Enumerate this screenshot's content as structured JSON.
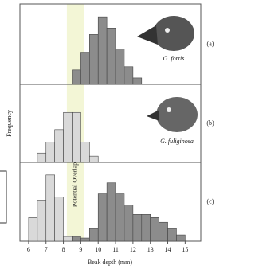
{
  "y_label": "Frequency",
  "x_label": "Beak depth (mm)",
  "chart_data": [
    {
      "type": "histogram",
      "label": "(a)",
      "species": "G. fortis",
      "xlim": [
        5.5,
        15.9
      ],
      "ylim": [
        0,
        100
      ],
      "series": [
        {
          "color": "#8c8c8c",
          "bins": [
            8.5,
            9,
            9.5,
            10,
            10.5,
            11,
            11.5,
            12,
            12.5
          ],
          "values": [
            18,
            40,
            62,
            84,
            70,
            44,
            22,
            8
          ]
        }
      ]
    },
    {
      "type": "histogram",
      "label": "(b)",
      "species": "G. fuliginosa",
      "xlim": [
        5.5,
        15.9
      ],
      "ylim": [
        0,
        100
      ],
      "series": [
        {
          "color": "#d9d9d9",
          "bins": [
            6.5,
            7,
            7.5,
            8,
            8.5,
            9,
            9.5,
            10
          ],
          "values": [
            12,
            26,
            42,
            64,
            64,
            26,
            8
          ]
        }
      ]
    },
    {
      "type": "histogram",
      "label": "(c)",
      "xlim": [
        5.5,
        15.9
      ],
      "ylim": [
        0,
        100
      ],
      "xticks": [
        6,
        7,
        8,
        9,
        10,
        11,
        12,
        13,
        14,
        15
      ],
      "overlap": {
        "label": "Potential Overlap",
        "range": [
          8.2,
          9.2
        ]
      },
      "series": [
        {
          "color": "#d9d9d9",
          "bins": [
            6,
            6.5,
            7,
            7.5,
            8,
            8.5
          ],
          "values": [
            30,
            52,
            84,
            56,
            6
          ]
        },
        {
          "color": "#8c8c8c",
          "bins": [
            8.5,
            9,
            9.5,
            10,
            10.5,
            11,
            11.5,
            12,
            12.5,
            13,
            13.5,
            14,
            14.5,
            15
          ],
          "values": [
            6,
            4,
            16,
            60,
            74,
            60,
            46,
            34,
            34,
            30,
            24,
            16,
            8
          ]
        }
      ]
    }
  ]
}
